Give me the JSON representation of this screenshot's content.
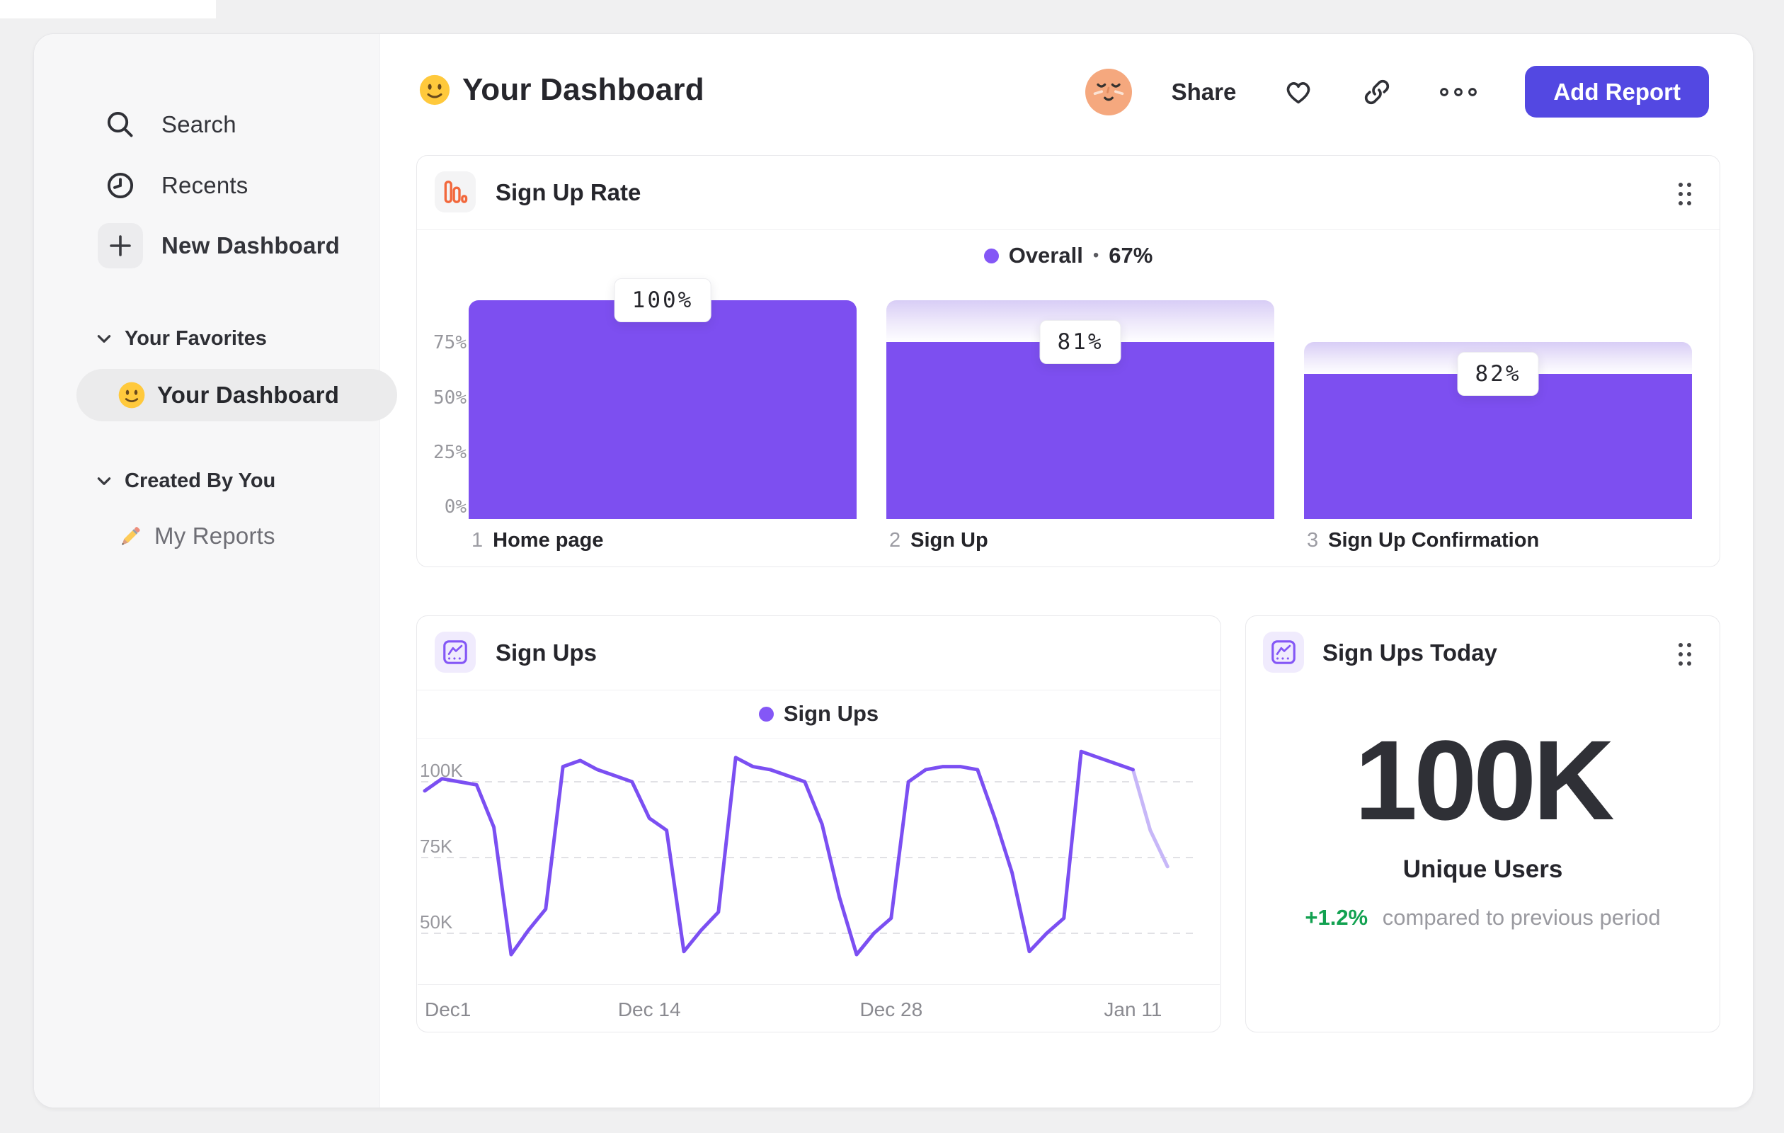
{
  "colors": {
    "accent_purple": "#7D4FF0",
    "legend_purple": "#8457F6",
    "line_purple": "#7B4FF2",
    "line_faded": "#C7B7F8",
    "grid_gray": "#E1E1E5",
    "button_indigo": "#5348E2",
    "green": "#12A150",
    "orange": "#F2683C"
  },
  "sidebar": {
    "items": [
      {
        "label": "Search",
        "icon": "search-icon"
      },
      {
        "label": "Recents",
        "icon": "clock-icon"
      },
      {
        "label": "New Dashboard",
        "icon": "plus-icon"
      }
    ],
    "sections": [
      {
        "title": "Your Favorites",
        "items": [
          {
            "label": "Your Dashboard",
            "icon": "smiley-emoji",
            "selected": true
          }
        ]
      },
      {
        "title": "Created By You",
        "items": [
          {
            "label": "My Reports",
            "icon": "pencil-emoji",
            "selected": false
          }
        ]
      }
    ]
  },
  "header": {
    "title": "Your Dashboard",
    "title_emoji": "smiley-emoji",
    "share_label": "Share",
    "add_report_label": "Add Report",
    "icons": [
      "avatar",
      "heart-icon",
      "link-icon",
      "ellipsis-icon"
    ]
  },
  "funnel_card": {
    "title": "Sign Up Rate",
    "legend_name": "Overall",
    "legend_sep": "•",
    "legend_value": "67%"
  },
  "line_card": {
    "title": "Sign Ups",
    "legend_name": "Sign Ups"
  },
  "stat_card": {
    "title": "Sign Ups Today",
    "value": "100K",
    "label": "Unique Users",
    "delta": "+1.2%",
    "delta_note": "compared to previous period"
  },
  "chart_data": [
    {
      "type": "bar",
      "subtype": "funnel-steps",
      "title": "Sign Up Rate",
      "legend": "Overall • 67%",
      "overall_conversion_pct": 67,
      "ylim": [
        0,
        100
      ],
      "grid": false,
      "y_ticks": [
        {
          "label": "75%",
          "value": 75
        },
        {
          "label": "50%",
          "value": 50
        },
        {
          "label": "25%",
          "value": 25
        },
        {
          "label": "0%",
          "value": 0
        }
      ],
      "steps": [
        {
          "index": "1",
          "name": "Home page",
          "value_label": "100%",
          "step_conversion_pct": 100,
          "overall_start_pct": 100,
          "overall_end_pct": 100
        },
        {
          "index": "2",
          "name": "Sign Up",
          "value_label": "81%",
          "step_conversion_pct": 81,
          "overall_start_pct": 100,
          "overall_end_pct": 81
        },
        {
          "index": "3",
          "name": "Sign Up Confirmation",
          "value_label": "82%",
          "step_conversion_pct": 82,
          "overall_start_pct": 81,
          "overall_end_pct": 66.4
        }
      ]
    },
    {
      "type": "line",
      "title": "Sign Ups",
      "ylabel": "Sign Ups",
      "ylim": [
        40,
        115
      ],
      "grid": "dashed-horizontal",
      "legend_position": "top-center",
      "y_ticks": [
        {
          "label": "100K",
          "value": 100
        },
        {
          "label": "75K",
          "value": 75
        },
        {
          "label": "50K",
          "value": 50
        }
      ],
      "x_ticks": [
        {
          "label": "Dec1",
          "index": 0
        },
        {
          "label": "Dec 14",
          "index": 13
        },
        {
          "label": "Dec 28",
          "index": 27
        },
        {
          "label": "Jan 11",
          "index": 41
        }
      ],
      "series": [
        {
          "name": "Sign Ups",
          "values_k": [
            97,
            101,
            100,
            99,
            85,
            43,
            51,
            58,
            105,
            107,
            104,
            102,
            100,
            88,
            84,
            44,
            51,
            57,
            108,
            105,
            104,
            102,
            100,
            86,
            62,
            43,
            50,
            55,
            100,
            104,
            105,
            105,
            104,
            88,
            70,
            44,
            50,
            55,
            110,
            108,
            106,
            104,
            84,
            72
          ]
        }
      ],
      "incomplete_tail_points": 2
    },
    {
      "type": "metric",
      "title": "Sign Ups Today",
      "value": "100K",
      "label": "Unique Users",
      "delta": "+1.2%",
      "comparison": "compared to previous period"
    }
  ]
}
